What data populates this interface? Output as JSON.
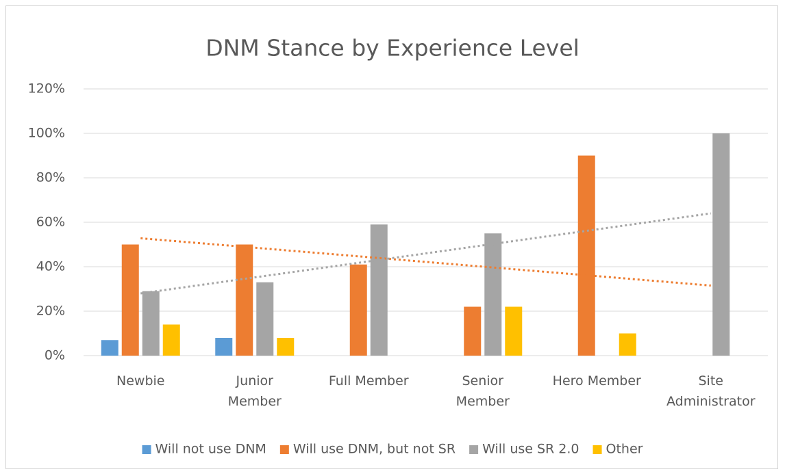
{
  "chart_data": {
    "type": "bar",
    "title": "DNM Stance by Experience Level",
    "categories": [
      "Newbie",
      "Junior\nMember",
      "Full Member",
      "Senior\nMember",
      "Hero Member",
      "Site\nAdministrator"
    ],
    "series": [
      {
        "name": "Will not use DNM",
        "color": "#5b9bd5",
        "values": [
          7,
          8,
          0,
          0,
          0,
          0
        ]
      },
      {
        "name": "Will use DNM, but not SR",
        "color": "#ed7d31",
        "values": [
          50,
          50,
          41,
          22,
          90,
          0
        ],
        "trendline": "linear"
      },
      {
        "name": "Will use SR 2.0",
        "color": "#a5a5a5",
        "values": [
          29,
          33,
          59,
          55,
          0,
          100
        ],
        "trendline": "linear"
      },
      {
        "name": "Other",
        "color": "#ffc000",
        "values": [
          14,
          8,
          0,
          22,
          10,
          0
        ]
      }
    ],
    "ylim": [
      0,
      120
    ],
    "yticks": [
      {
        "value": 0,
        "label": "0%"
      },
      {
        "value": 20,
        "label": "20%"
      },
      {
        "value": 40,
        "label": "40%"
      },
      {
        "value": 60,
        "label": "60%"
      },
      {
        "value": 80,
        "label": "80%"
      },
      {
        "value": 100,
        "label": "100%"
      },
      {
        "value": 120,
        "label": "120%"
      }
    ],
    "grid": true,
    "legend": "bottom"
  }
}
